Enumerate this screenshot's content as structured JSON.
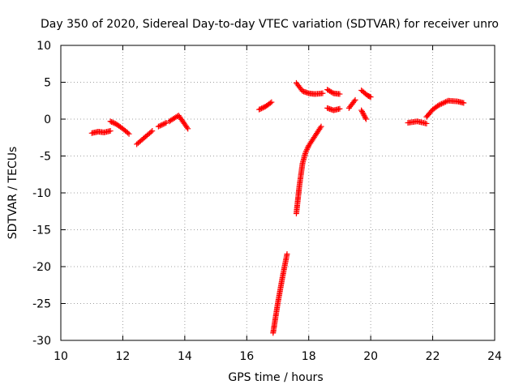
{
  "chart_data": {
    "type": "scatter",
    "title": "Day 350 of 2020, Sidereal Day-to-day VTEC variation (SDTVAR) for receiver unro",
    "xlabel": "GPS time / hours",
    "ylabel": "SDTVAR / TECUs",
    "xlim": [
      10,
      24
    ],
    "ylim": [
      -30,
      10
    ],
    "xticks": [
      10,
      12,
      14,
      16,
      18,
      20,
      22,
      24
    ],
    "yticks": [
      -30,
      -25,
      -20,
      -15,
      -10,
      -5,
      0,
      5,
      10
    ],
    "grid": true,
    "marker": "plus",
    "color": "#ff0000",
    "segments": [
      {
        "x": [
          11.0,
          11.2,
          11.4,
          11.6
        ],
        "y": [
          -1.9,
          -1.7,
          -1.8,
          -1.6
        ]
      },
      {
        "x": [
          11.6,
          11.8,
          12.0,
          12.2
        ],
        "y": [
          -0.3,
          -0.7,
          -1.3,
          -2.0
        ]
      },
      {
        "x": [
          12.45,
          12.7,
          12.95
        ],
        "y": [
          -3.4,
          -2.5,
          -1.6
        ]
      },
      {
        "x": [
          13.15,
          13.4
        ],
        "y": [
          -1.0,
          -0.5
        ]
      },
      {
        "x": [
          13.5,
          13.8,
          14.1
        ],
        "y": [
          -0.3,
          0.5,
          -1.3
        ]
      },
      {
        "x": [
          16.4,
          16.6,
          16.8
        ],
        "y": [
          1.3,
          1.7,
          2.3
        ]
      },
      {
        "x": [
          16.85,
          17.0,
          17.15,
          17.3
        ],
        "y": [
          -29.0,
          -25.0,
          -21.5,
          -18.3
        ]
      },
      {
        "x": [
          17.6,
          17.7,
          17.8,
          17.9,
          18.0,
          18.2,
          18.4
        ],
        "y": [
          -12.8,
          -9.0,
          -6.0,
          -4.5,
          -3.6,
          -2.3,
          -1.0
        ]
      },
      {
        "x": [
          17.6,
          17.8,
          18.0,
          18.2,
          18.45
        ],
        "y": [
          4.9,
          3.8,
          3.5,
          3.4,
          3.5
        ]
      },
      {
        "x": [
          18.6,
          18.8,
          19.0
        ],
        "y": [
          4.0,
          3.5,
          3.4
        ]
      },
      {
        "x": [
          18.6,
          18.8,
          19.0
        ],
        "y": [
          1.5,
          1.2,
          1.4
        ]
      },
      {
        "x": [
          19.3,
          19.5
        ],
        "y": [
          1.5,
          2.6
        ]
      },
      {
        "x": [
          19.7,
          19.9,
          20.0
        ],
        "y": [
          3.9,
          3.2,
          3.0
        ]
      },
      {
        "x": [
          19.7,
          19.85
        ],
        "y": [
          1.2,
          0.0
        ]
      },
      {
        "x": [
          21.2,
          21.5,
          21.8
        ],
        "y": [
          -0.5,
          -0.3,
          -0.6
        ]
      },
      {
        "x": [
          21.8,
          22.0,
          22.2,
          22.5,
          22.8,
          23.0
        ],
        "y": [
          0.3,
          1.3,
          1.9,
          2.5,
          2.4,
          2.2
        ]
      }
    ]
  }
}
